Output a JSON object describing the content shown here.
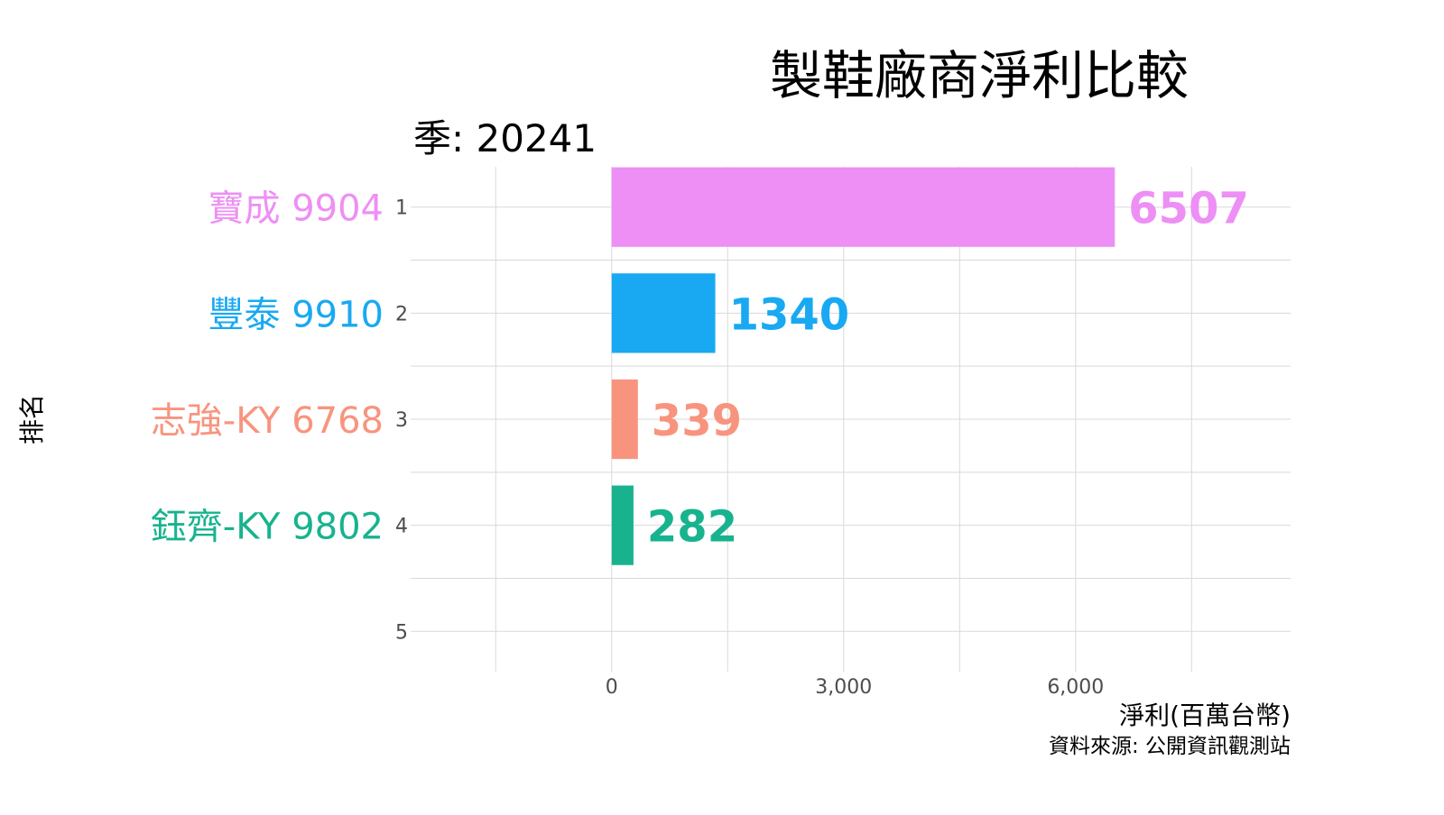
{
  "chart_data": {
    "type": "bar",
    "orientation": "horizontal",
    "title": "製鞋廠商淨利比較",
    "subtitle": "季: 20241",
    "xlabel": "淨利(百萬台幣)",
    "ylabel": "排名",
    "caption": "資料來源: 公開資訊觀測站",
    "xlim": [
      -2600,
      8780
    ],
    "ylim": [
      0.62,
      5.38
    ],
    "xticks": [
      0,
      3000,
      6000
    ],
    "xtick_labels": [
      "0",
      "3,000",
      "6,000"
    ],
    "yticks": [
      1,
      2,
      3,
      4,
      5
    ],
    "ytick_labels": [
      "1",
      "2",
      "3",
      "4",
      "5"
    ],
    "grid": true,
    "legend": "none",
    "bars": [
      {
        "rank": 1,
        "label": "寶成 9904",
        "value": 6507,
        "value_label": "6507",
        "color": "#EE8FF5"
      },
      {
        "rank": 2,
        "label": "豐泰 9910",
        "value": 1340,
        "value_label": "1340",
        "color": "#18A9F2"
      },
      {
        "rank": 3,
        "label": "志強-KY 6768",
        "value": 339,
        "value_label": "339",
        "color": "#F8947E"
      },
      {
        "rank": 4,
        "label": "鈺齊-KY 9802",
        "value": 282,
        "value_label": "282",
        "color": "#18B38E"
      }
    ]
  }
}
